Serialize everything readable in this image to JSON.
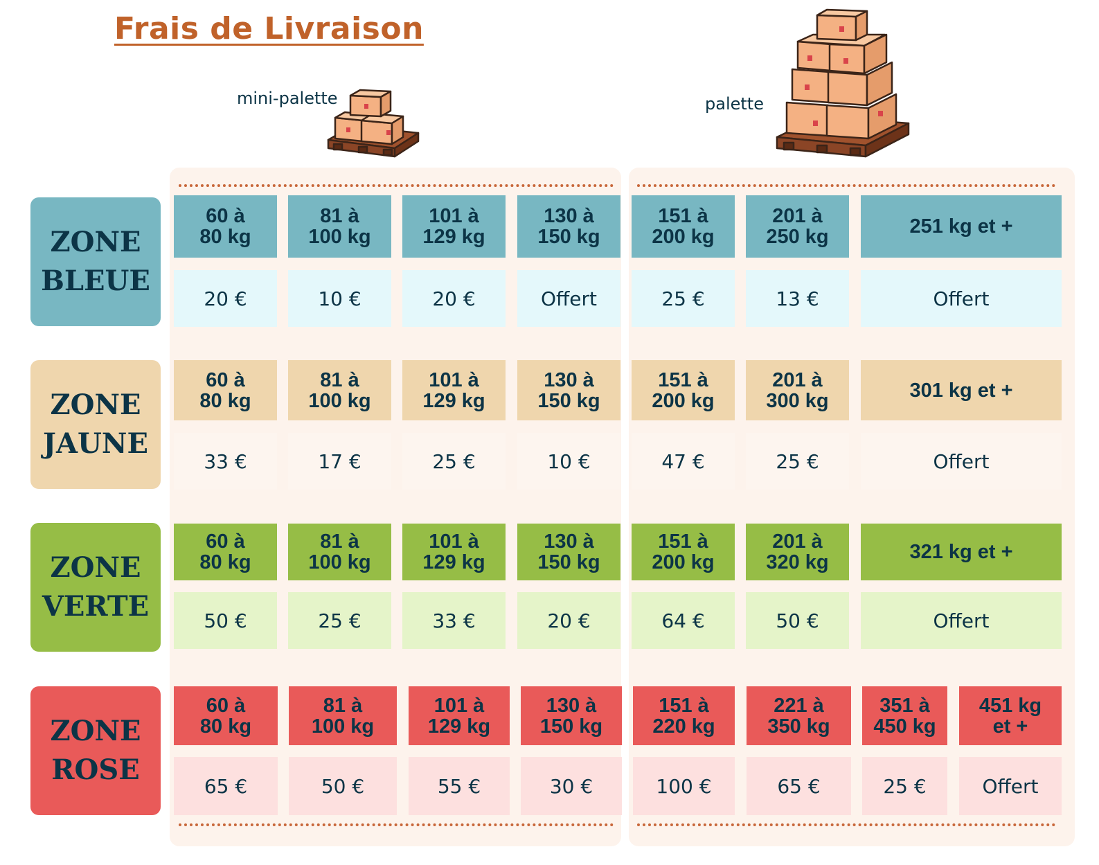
{
  "title": "Frais de Livraison",
  "captions": {
    "mini_palette": "mini-palette",
    "palette": "palette"
  },
  "colors": {
    "bleue": {
      "zone": "#78b7c2",
      "header": "#78b7c2",
      "price": "#e4f8fb"
    },
    "jaune": {
      "zone": "#efd6ad",
      "header": "#efd6ad",
      "price": "#fdf5ef"
    },
    "verte": {
      "zone": "#96bd46",
      "header": "#96bd46",
      "price": "#e5f4c9"
    },
    "rose": {
      "zone": "#e95a59",
      "header": "#e95a59",
      "price": "#fde0df"
    }
  },
  "zones": [
    {
      "key": "bleue",
      "label": "ZONE\nBLEUE",
      "headers": [
        "60 à\n80 kg",
        "81 à\n100 kg",
        "101 à\n129 kg",
        "130 à\n150 kg",
        "151 à\n200 kg",
        "201 à\n250 kg",
        "251 kg et +"
      ],
      "prices": [
        "20 €",
        "10 €",
        "20 €",
        "Offert",
        "25 €",
        "13 €",
        "Offert"
      ]
    },
    {
      "key": "jaune",
      "label": "ZONE\nJAUNE",
      "headers": [
        "60 à\n80 kg",
        "81 à\n100 kg",
        "101 à\n129 kg",
        "130 à\n150 kg",
        "151 à\n200 kg",
        "201 à\n300 kg",
        "301 kg et +"
      ],
      "prices": [
        "33 €",
        "17 €",
        "25 €",
        "10 €",
        "47 €",
        "25 €",
        "Offert"
      ]
    },
    {
      "key": "verte",
      "label": "ZONE\nVERTE",
      "headers": [
        "60 à\n80 kg",
        "81 à\n100 kg",
        "101 à\n129 kg",
        "130 à\n150 kg",
        "151 à\n200 kg",
        "201 à\n320 kg",
        "321 kg et +"
      ],
      "prices": [
        "50 €",
        "25 €",
        "33 €",
        "20 €",
        "64 €",
        "50 €",
        "Offert"
      ]
    },
    {
      "key": "rose",
      "label": "ZONE\nROSE",
      "headers": [
        "60 à\n80 kg",
        "81 à\n100 kg",
        "101 à\n129 kg",
        "130 à\n150 kg",
        "151 à\n220 kg",
        "221 à\n350 kg",
        "351 à\n450 kg",
        "451 kg\net +"
      ],
      "prices": [
        "65 €",
        "50 €",
        "55 €",
        "30 €",
        "100 €",
        "65 €",
        "25 €",
        "Offert"
      ]
    }
  ]
}
